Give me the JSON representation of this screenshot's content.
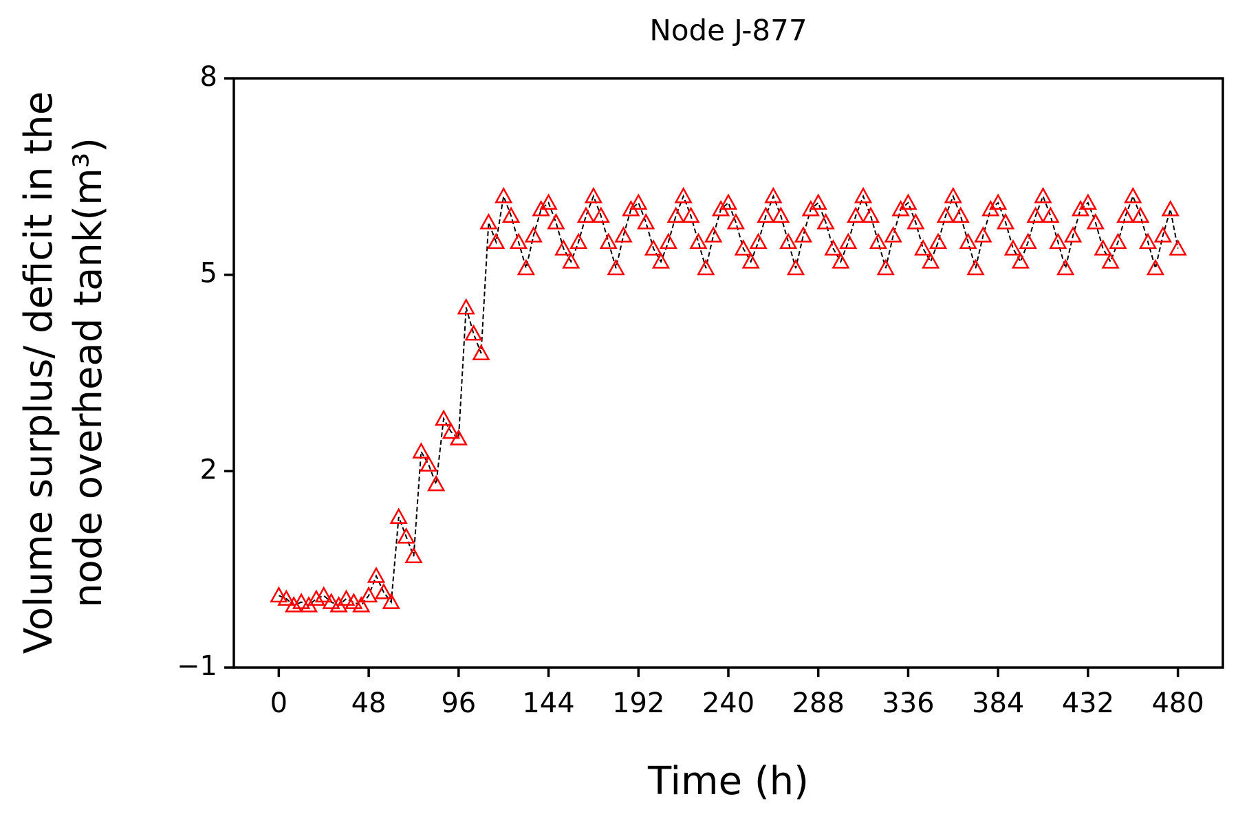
{
  "chart_data": {
    "type": "line",
    "title": "Node J-877",
    "title_color": "#ff0000",
    "xlabel": "Time (h)",
    "ylabel": [
      "Volume surplus/ deficit in the",
      "node overhead tank(m³)"
    ],
    "x": [
      0,
      4,
      8,
      12,
      16,
      20,
      24,
      28,
      32,
      36,
      40,
      44,
      48,
      52,
      56,
      60,
      64,
      68,
      72,
      76,
      80,
      84,
      88,
      92,
      96,
      100,
      104,
      108,
      112,
      116,
      120,
      124,
      128,
      132,
      136,
      140,
      144,
      148,
      152,
      156,
      160,
      164,
      168,
      172,
      176,
      180,
      184,
      188,
      192,
      196,
      200,
      204,
      208,
      212,
      216,
      220,
      224,
      228,
      232,
      236,
      240,
      244,
      248,
      252,
      256,
      260,
      264,
      268,
      272,
      276,
      280,
      284,
      288,
      292,
      296,
      300,
      304,
      308,
      312,
      316,
      320,
      324,
      328,
      332,
      336,
      340,
      344,
      348,
      352,
      356,
      360,
      364,
      368,
      372,
      376,
      380,
      384,
      388,
      392,
      396,
      400,
      404,
      408,
      412,
      416,
      420,
      424,
      428,
      432,
      436,
      440,
      444,
      448,
      452,
      456,
      460,
      464,
      468,
      472,
      476,
      480
    ],
    "values": [
      0.1,
      0.05,
      -0.05,
      0.0,
      -0.05,
      0.05,
      0.1,
      0.0,
      -0.05,
      0.05,
      0.0,
      -0.05,
      0.1,
      0.4,
      0.15,
      0.0,
      1.3,
      1.0,
      0.7,
      2.3,
      2.1,
      1.8,
      2.8,
      2.6,
      2.5,
      4.5,
      4.1,
      3.8,
      5.8,
      5.5,
      6.2,
      5.9,
      5.5,
      5.1,
      5.6,
      6.0,
      6.1,
      5.8,
      5.4,
      5.2,
      5.5,
      5.9,
      6.2,
      5.9,
      5.5,
      5.1,
      5.6,
      6.0,
      6.1,
      5.8,
      5.4,
      5.2,
      5.5,
      5.9,
      6.2,
      5.9,
      5.5,
      5.1,
      5.6,
      6.0,
      6.1,
      5.8,
      5.4,
      5.2,
      5.5,
      5.9,
      6.2,
      5.9,
      5.5,
      5.1,
      5.6,
      6.0,
      6.1,
      5.8,
      5.4,
      5.2,
      5.5,
      5.9,
      6.2,
      5.9,
      5.5,
      5.1,
      5.6,
      6.0,
      6.1,
      5.8,
      5.4,
      5.2,
      5.5,
      5.9,
      6.2,
      5.9,
      5.5,
      5.1,
      5.6,
      6.0,
      6.1,
      5.8,
      5.4,
      5.2,
      5.5,
      5.9,
      6.2,
      5.9,
      5.5,
      5.1,
      5.6,
      6.0,
      6.1,
      5.8,
      5.4,
      5.2,
      5.5,
      5.9,
      6.2,
      5.9,
      5.5,
      5.1,
      5.6,
      6.0,
      5.4
    ],
    "color": "#ff0000",
    "marker": "triangle",
    "line_color": "#000000",
    "line_style": "dashed",
    "xlim": [
      -24,
      504
    ],
    "xticks": [
      0,
      48,
      96,
      144,
      192,
      240,
      288,
      336,
      384,
      432,
      480
    ],
    "ylim": [
      -1,
      8
    ],
    "yticks": [
      {
        "value": -1,
        "label": "−1"
      },
      2,
      5,
      8
    ],
    "grid": false
  }
}
